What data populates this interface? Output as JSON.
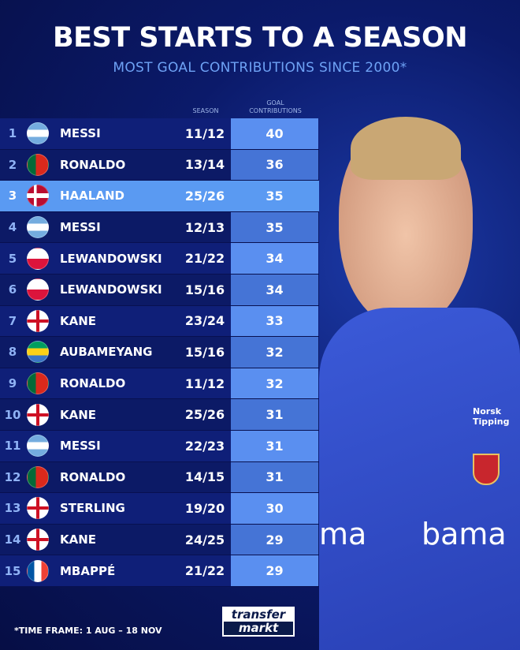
{
  "title": "BEST STARTS TO A SEASON",
  "subtitle": "MOST GOAL CONTRIBUTIONS SINCE 2000*",
  "headers": {
    "season": "SEASON",
    "contributions": "GOAL CONTRIBUTIONS"
  },
  "rows": [
    {
      "rank": "1",
      "flag": "argentina",
      "name": "MESSI",
      "season": "11/12",
      "value": "40"
    },
    {
      "rank": "2",
      "flag": "portugal",
      "name": "RONALDO",
      "season": "13/14",
      "value": "36"
    },
    {
      "rank": "3",
      "flag": "norway",
      "name": "HAALAND",
      "season": "25/26",
      "value": "35",
      "highlight": true
    },
    {
      "rank": "4",
      "flag": "argentina",
      "name": "MESSI",
      "season": "12/13",
      "value": "35"
    },
    {
      "rank": "5",
      "flag": "poland",
      "name": "LEWANDOWSKI",
      "season": "21/22",
      "value": "34"
    },
    {
      "rank": "6",
      "flag": "poland",
      "name": "LEWANDOWSKI",
      "season": "15/16",
      "value": "34"
    },
    {
      "rank": "7",
      "flag": "england",
      "name": "KANE",
      "season": "23/24",
      "value": "33"
    },
    {
      "rank": "8",
      "flag": "gabon",
      "name": "AUBAMEYANG",
      "season": "15/16",
      "value": "32"
    },
    {
      "rank": "9",
      "flag": "portugal",
      "name": "RONALDO",
      "season": "11/12",
      "value": "32"
    },
    {
      "rank": "10",
      "flag": "england",
      "name": "KANE",
      "season": "25/26",
      "value": "31"
    },
    {
      "rank": "11",
      "flag": "argentina",
      "name": "MESSI",
      "season": "22/23",
      "value": "31"
    },
    {
      "rank": "12",
      "flag": "portugal",
      "name": "RONALDO",
      "season": "14/15",
      "value": "31"
    },
    {
      "rank": "13",
      "flag": "england",
      "name": "STERLING",
      "season": "19/20",
      "value": "30"
    },
    {
      "rank": "14",
      "flag": "england",
      "name": "KANE",
      "season": "24/25",
      "value": "29"
    },
    {
      "rank": "15",
      "flag": "france",
      "name": "MBAPPÉ",
      "season": "21/22",
      "value": "29"
    }
  ],
  "footnote": "*TIME FRAME: 1 AUG – 18 NOV",
  "logo": {
    "top": "transfer",
    "bottom": "markt"
  },
  "jersey": {
    "sponsor": "bama",
    "brand": "Norsk Tipping"
  }
}
